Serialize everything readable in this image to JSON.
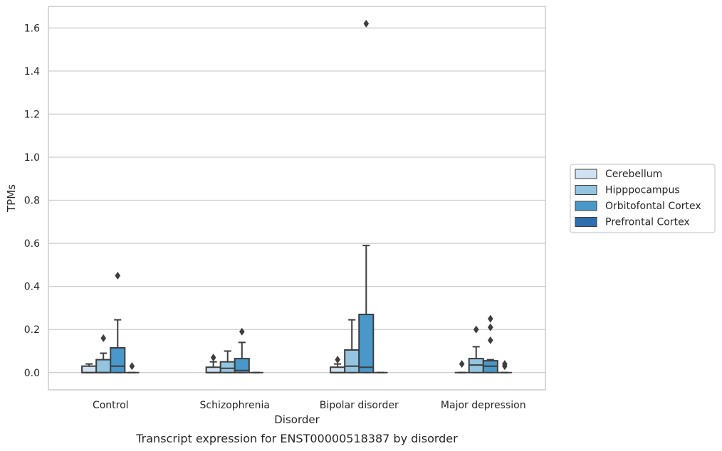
{
  "chart_data": {
    "type": "box",
    "caption": "Transcript expression for ENST00000518387 by disorder",
    "xlabel": "Disorder",
    "ylabel": "TPMs",
    "ylim": [
      -0.08,
      1.7
    ],
    "yticks": [
      0.0,
      0.2,
      0.4,
      0.6,
      0.8,
      1.0,
      1.2,
      1.4,
      1.6
    ],
    "ytick_labels": [
      "0.0",
      "0.2",
      "0.4",
      "0.6",
      "0.8",
      "1.0",
      "1.2",
      "1.4",
      "1.6"
    ],
    "grid": "horizontal",
    "legend_position": "right",
    "categories": [
      "Control",
      "Schizophrenia",
      "Bipolar disorder",
      "Major depression"
    ],
    "series": [
      {
        "name": "Cerebellum",
        "color": "#d0e1f2",
        "boxes": [
          {
            "q1": 0.0,
            "median": 0.0,
            "q3": 0.03,
            "whisker_low": 0.0,
            "whisker_high": 0.04,
            "outliers": []
          },
          {
            "q1": 0.0,
            "median": 0.0,
            "q3": 0.025,
            "whisker_low": 0.0,
            "whisker_high": 0.05,
            "outliers": [
              0.07
            ]
          },
          {
            "q1": 0.0,
            "median": 0.0,
            "q3": 0.025,
            "whisker_low": 0.0,
            "whisker_high": 0.04,
            "outliers": [
              0.06
            ]
          },
          {
            "q1": 0.0,
            "median": 0.0,
            "q3": 0.0,
            "whisker_low": 0.0,
            "whisker_high": 0.0,
            "outliers": [
              0.04
            ]
          }
        ]
      },
      {
        "name": "Hipppocampus",
        "color": "#94c4df",
        "boxes": [
          {
            "q1": 0.0,
            "median": 0.0,
            "q3": 0.06,
            "whisker_low": 0.0,
            "whisker_high": 0.09,
            "outliers": [
              0.16
            ]
          },
          {
            "q1": 0.0,
            "median": 0.02,
            "q3": 0.05,
            "whisker_low": 0.0,
            "whisker_high": 0.1,
            "outliers": []
          },
          {
            "q1": 0.0,
            "median": 0.03,
            "q3": 0.105,
            "whisker_low": 0.0,
            "whisker_high": 0.245,
            "outliers": []
          },
          {
            "q1": 0.0,
            "median": 0.035,
            "q3": 0.065,
            "whisker_low": 0.0,
            "whisker_high": 0.12,
            "outliers": [
              0.2
            ]
          }
        ]
      },
      {
        "name": "Orbitofontal Cortex",
        "color": "#4a98c9",
        "boxes": [
          {
            "q1": 0.0,
            "median": 0.03,
            "q3": 0.115,
            "whisker_low": 0.0,
            "whisker_high": 0.245,
            "outliers": [
              0.45
            ]
          },
          {
            "q1": 0.0,
            "median": 0.01,
            "q3": 0.065,
            "whisker_low": 0.0,
            "whisker_high": 0.14,
            "outliers": [
              0.19
            ]
          },
          {
            "q1": 0.0,
            "median": 0.025,
            "q3": 0.27,
            "whisker_low": 0.0,
            "whisker_high": 0.59,
            "outliers": [
              1.62
            ]
          },
          {
            "q1": 0.0,
            "median": 0.03,
            "q3": 0.055,
            "whisker_low": 0.0,
            "whisker_high": 0.06,
            "outliers": [
              0.15,
              0.21,
              0.25
            ]
          }
        ]
      },
      {
        "name": "Prefrontal Cortex",
        "color": "#2d6fad",
        "boxes": [
          {
            "q1": 0.0,
            "median": 0.0,
            "q3": 0.0,
            "whisker_low": 0.0,
            "whisker_high": 0.0,
            "outliers": [
              0.03
            ]
          },
          {
            "q1": 0.0,
            "median": 0.0,
            "q3": 0.0,
            "whisker_low": 0.0,
            "whisker_high": 0.0,
            "outliers": []
          },
          {
            "q1": 0.0,
            "median": 0.0,
            "q3": 0.0,
            "whisker_low": 0.0,
            "whisker_high": 0.0,
            "outliers": []
          },
          {
            "q1": 0.0,
            "median": 0.0,
            "q3": 0.0,
            "whisker_low": 0.0,
            "whisker_high": 0.0,
            "outliers": [
              0.03,
              0.04
            ]
          }
        ]
      }
    ]
  }
}
